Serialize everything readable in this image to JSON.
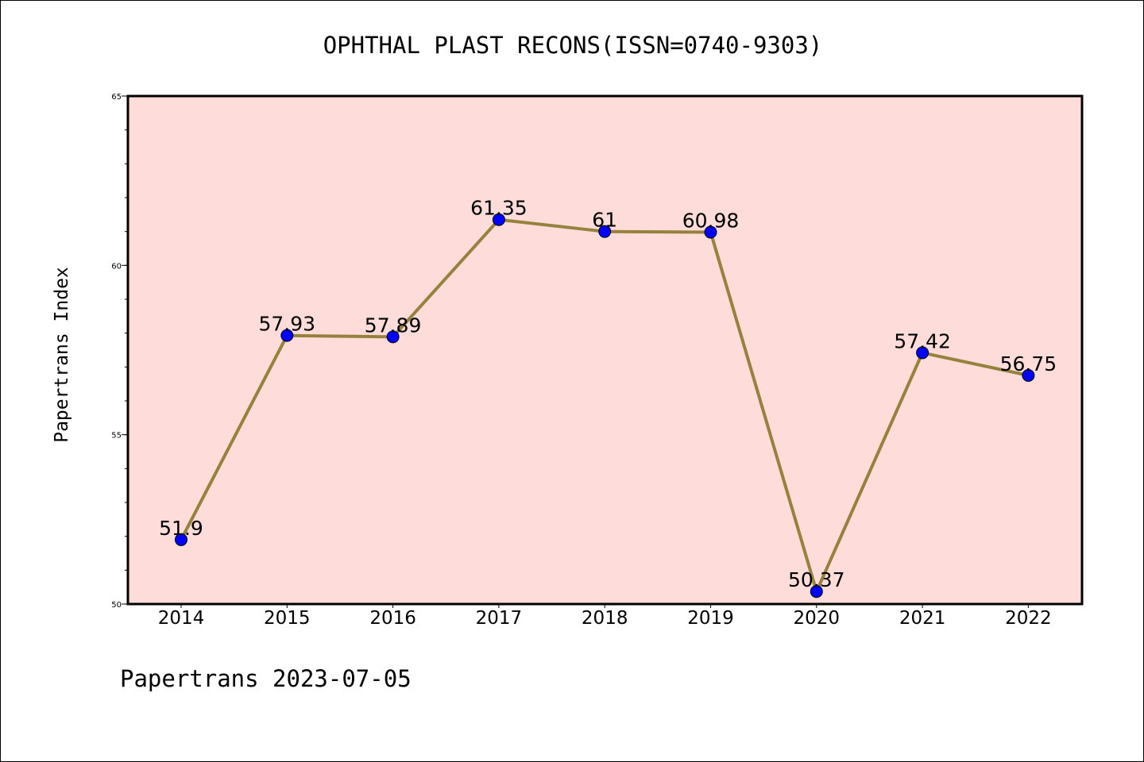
{
  "chart_data": {
    "type": "line",
    "title": "OPHTHAL PLAST RECONS(ISSN=0740-9303)",
    "xlabel": "",
    "ylabel": "Papertrans Index",
    "categories": [
      "2014",
      "2015",
      "2016",
      "2017",
      "2018",
      "2019",
      "2020",
      "2021",
      "2022"
    ],
    "series": [
      {
        "values": [
          51.9,
          57.93,
          57.89,
          61.35,
          61,
          60.98,
          50.37,
          57.42,
          56.75
        ],
        "labels": [
          "51.9",
          "57.93",
          "57.89",
          "61.35",
          "61",
          "60.98",
          "50.37",
          "57.42",
          "56.75"
        ]
      }
    ],
    "ylim": [
      50,
      65
    ],
    "yticks": [
      50,
      55,
      60,
      65
    ],
    "ytick_labels": [
      "50",
      "55",
      "60",
      "65"
    ],
    "grid": false,
    "legend": "none"
  },
  "footer": {
    "text": "Papertrans 2023-07-05"
  },
  "colors": {
    "plot_background": "#fddcd9",
    "line": "#96823c",
    "marker": "#0000ff",
    "frame": "#000000"
  }
}
